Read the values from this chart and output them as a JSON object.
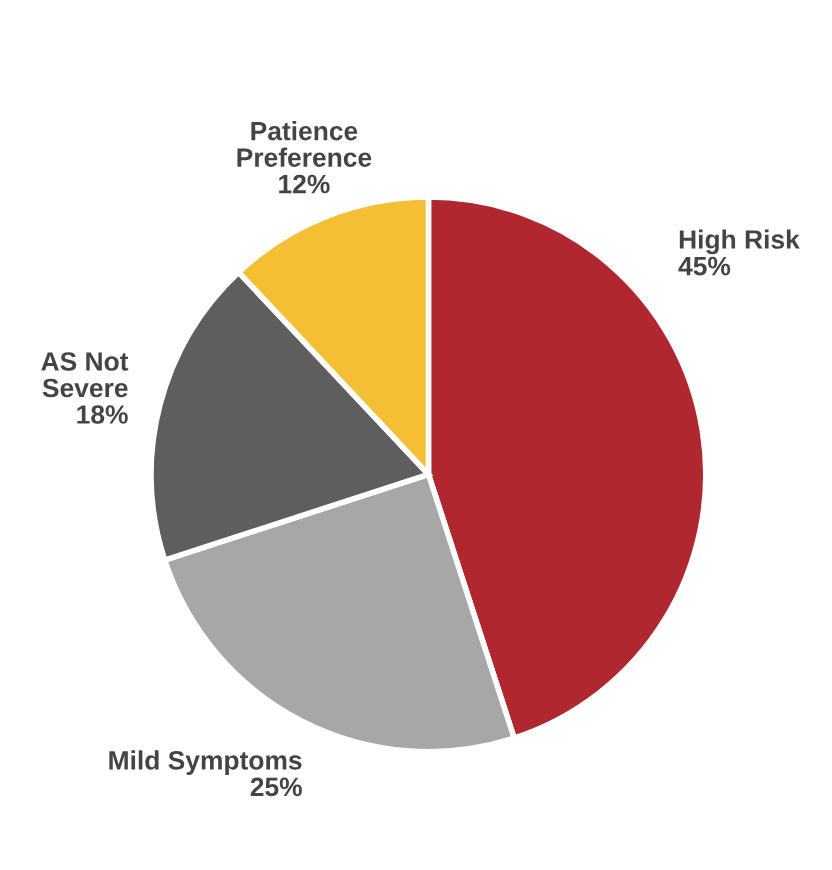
{
  "chart_data": {
    "type": "pie",
    "categories": [
      "High Risk",
      "Mild Symptoms",
      "AS Not\nSevere",
      "Patience\nPreference"
    ],
    "values": [
      45,
      25,
      18,
      12
    ],
    "value_labels": [
      "45%",
      "25%",
      "18%",
      "12%"
    ],
    "colors": [
      "#b0272f",
      "#a7a7a7",
      "#5e5e5e",
      "#f4bf35"
    ]
  }
}
